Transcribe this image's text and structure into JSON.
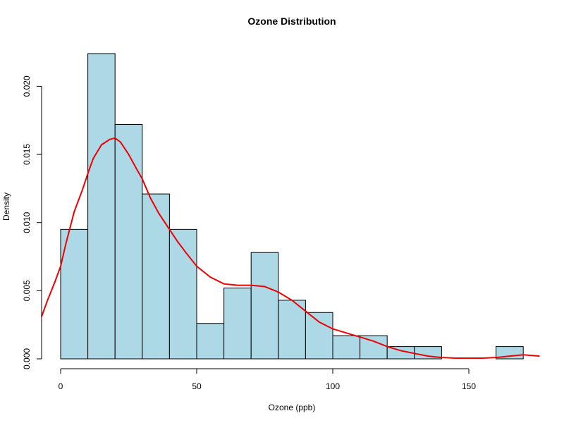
{
  "chart_data": {
    "type": "bar",
    "title": "Ozone Distribution",
    "xlabel": "Ozone (ppb)",
    "ylabel": "Density",
    "xlim": [
      0,
      175
    ],
    "ylim": [
      0,
      0.0225
    ],
    "x_ticks": [
      0,
      50,
      100,
      150
    ],
    "y_ticks": [
      "0.000",
      "0.005",
      "0.010",
      "0.015",
      "0.020"
    ],
    "grid": false,
    "legend": "none",
    "bins": [
      {
        "start": 0,
        "end": 10,
        "density": 0.0095
      },
      {
        "start": 10,
        "end": 20,
        "density": 0.0224
      },
      {
        "start": 20,
        "end": 30,
        "density": 0.0172
      },
      {
        "start": 30,
        "end": 40,
        "density": 0.0121
      },
      {
        "start": 40,
        "end": 50,
        "density": 0.0095
      },
      {
        "start": 50,
        "end": 60,
        "density": 0.0026
      },
      {
        "start": 60,
        "end": 70,
        "density": 0.0052
      },
      {
        "start": 70,
        "end": 80,
        "density": 0.0078
      },
      {
        "start": 80,
        "end": 90,
        "density": 0.0043
      },
      {
        "start": 90,
        "end": 100,
        "density": 0.0034
      },
      {
        "start": 100,
        "end": 110,
        "density": 0.0017
      },
      {
        "start": 110,
        "end": 120,
        "density": 0.0017
      },
      {
        "start": 120,
        "end": 130,
        "density": 0.0009
      },
      {
        "start": 130,
        "end": 140,
        "density": 0.0009
      },
      {
        "start": 140,
        "end": 150,
        "density": 0.0
      },
      {
        "start": 150,
        "end": 160,
        "density": 0.0
      },
      {
        "start": 160,
        "end": 170,
        "density": 0.0009
      }
    ],
    "density_curve": {
      "x": [
        -7,
        -5,
        -2,
        0,
        2,
        5,
        8,
        10,
        12,
        15,
        18,
        20,
        22,
        25,
        28,
        30,
        33,
        36,
        40,
        43,
        46,
        50,
        55,
        60,
        65,
        70,
        75,
        80,
        85,
        90,
        95,
        100,
        105,
        110,
        115,
        120,
        125,
        130,
        135,
        140,
        145,
        150,
        155,
        160,
        165,
        170,
        176
      ],
      "y": [
        0.0031,
        0.0042,
        0.0057,
        0.0068,
        0.0085,
        0.0108,
        0.0124,
        0.0136,
        0.0147,
        0.0157,
        0.0161,
        0.0162,
        0.0159,
        0.015,
        0.0139,
        0.0132,
        0.0118,
        0.0107,
        0.0095,
        0.0086,
        0.0078,
        0.0068,
        0.006,
        0.0055,
        0.0054,
        0.0054,
        0.0053,
        0.0049,
        0.0043,
        0.0035,
        0.0027,
        0.0022,
        0.0019,
        0.0016,
        0.0013,
        0.0009,
        0.0006,
        0.0004,
        0.0002,
        0.0001,
        5e-05,
        5e-05,
        5e-05,
        0.0001,
        0.0002,
        0.0003,
        0.0002
      ]
    },
    "colors": {
      "bar_fill": "#add8e6",
      "bar_border": "#000000",
      "density_line": "#ee0000"
    }
  }
}
